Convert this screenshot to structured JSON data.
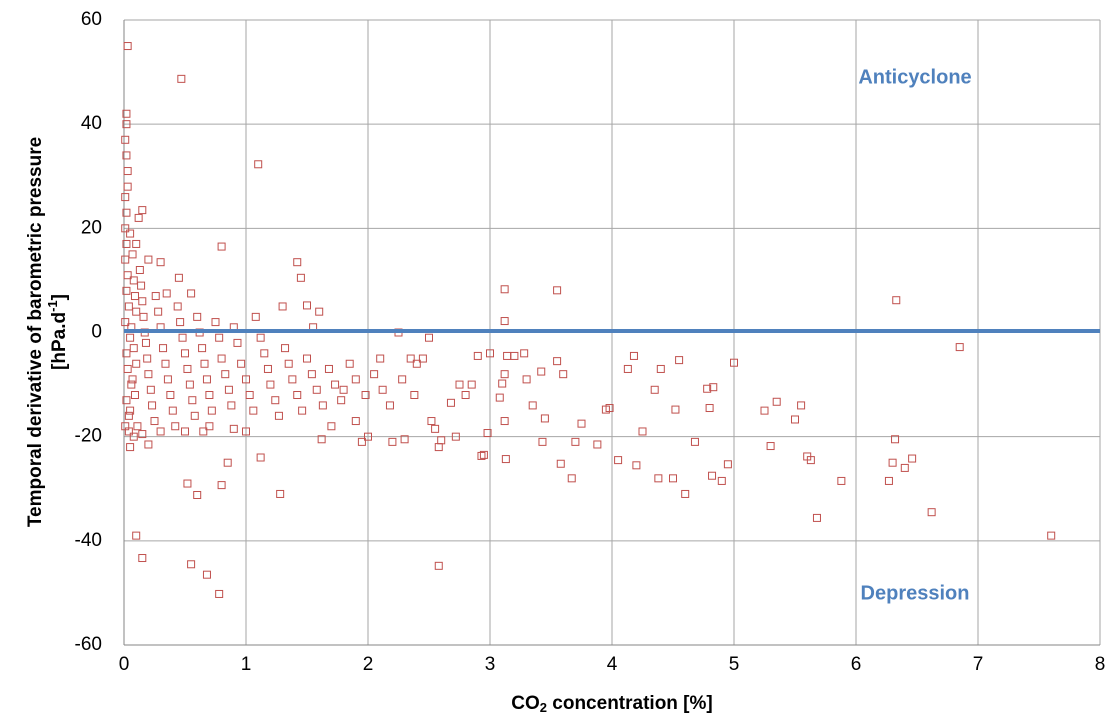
{
  "chart_data": {
    "type": "scatter",
    "xlabel": [
      "CO",
      "2",
      " concentration [%]"
    ],
    "ylabel": [
      "Temporal derivative of barometric pressure",
      "[hPa.d",
      "-1",
      "]"
    ],
    "annotations": [
      "Anticyclone",
      "Depression"
    ],
    "annotation_color": "#4f81bd",
    "reference_line": {
      "y": 0.3,
      "color": "#4f81bd"
    },
    "color": "#c0504d",
    "grid": true,
    "xlim": [
      0,
      8
    ],
    "xticks": [
      0,
      1,
      2,
      3,
      4,
      5,
      6,
      7,
      8
    ],
    "ylim": [
      -60,
      60
    ],
    "yticks": [
      -60,
      -40,
      -20,
      0,
      20,
      40,
      60
    ],
    "x": [
      0.03,
      0.47,
      1.1,
      0.02,
      0.02,
      0.01,
      0.02,
      0.03,
      0.15,
      0.8,
      1.42,
      1.45,
      3.12,
      3.55,
      3.12,
      6.33,
      6.85,
      7.6,
      6.62,
      5.68,
      5.88,
      6.27,
      6.32,
      6.3,
      6.4,
      6.46,
      5.6,
      5.63,
      5.5,
      5.55,
      5.35,
      5.25,
      5.3,
      5.0,
      4.55,
      4.18,
      4.9,
      4.82,
      4.6,
      4.5,
      4.38,
      4.05,
      4.2,
      4.25,
      4.68,
      4.95,
      4.83,
      4.78,
      4.8,
      4.52,
      4.35,
      4.4,
      4.13,
      3.98,
      3.95,
      3.88,
      3.7,
      3.75,
      3.67,
      3.58,
      3.6,
      3.55,
      3.45,
      3.43,
      3.42,
      3.35,
      3.3,
      3.28,
      3.2,
      3.14,
      3.12,
      3.1,
      3.08,
      3.12,
      3.13,
      3.0,
      2.98,
      2.95,
      2.93,
      2.9,
      2.85,
      2.8,
      2.75,
      2.72,
      2.68,
      2.58,
      2.6,
      2.55,
      2.58,
      2.52,
      2.5,
      2.45,
      2.4,
      2.35,
      2.3,
      2.2,
      2.25,
      2.1,
      2.0,
      1.95,
      1.9,
      1.8,
      1.7,
      1.62,
      1.6,
      1.55,
      1.5,
      1.3,
      1.28,
      1.12,
      0.85,
      0.6,
      0.52,
      0.55,
      0.68,
      0.78,
      0.1,
      0.15,
      0.2,
      0.05,
      0.8,
      0.65,
      0.9,
      1.0,
      0.01,
      0.02,
      0.01,
      0.03,
      0.02,
      0.04,
      0.01,
      0.05,
      0.02,
      0.03,
      0.06,
      0.02,
      0.04,
      0.01,
      0.03,
      0.02,
      0.05,
      0.07,
      0.08,
      0.09,
      0.1,
      0.06,
      0.08,
      0.1,
      0.07,
      0.09,
      0.05,
      0.11,
      0.01,
      0.12,
      0.13,
      0.14,
      0.15,
      0.16,
      0.17,
      0.18,
      0.19,
      0.2,
      0.22,
      0.23,
      0.25,
      0.26,
      0.28,
      0.3,
      0.32,
      0.34,
      0.36,
      0.38,
      0.4,
      0.42,
      0.44,
      0.46,
      0.48,
      0.5,
      0.52,
      0.54,
      0.56,
      0.58,
      0.6,
      0.62,
      0.64,
      0.66,
      0.68,
      0.7,
      0.72,
      0.75,
      0.78,
      0.8,
      0.83,
      0.86,
      0.88,
      0.9,
      0.93,
      0.96,
      1.0,
      1.03,
      1.06,
      1.08,
      1.12,
      1.15,
      1.18,
      1.2,
      1.24,
      1.27,
      1.32,
      1.35,
      1.38,
      1.42,
      1.46,
      1.5,
      1.54,
      1.58,
      1.63,
      1.68,
      1.73,
      1.78,
      1.85,
      1.9,
      1.98,
      2.05,
      2.12,
      2.18,
      2.28,
      2.38,
      0.3,
      0.45,
      0.2,
      0.1,
      0.35,
      0.55,
      0.04,
      0.08,
      0.15,
      0.3,
      0.5,
      0.7
    ],
    "values": [
      55,
      48.7,
      32.3,
      42,
      40,
      37,
      34,
      31,
      23.5,
      16.5,
      13.5,
      10.5,
      8.3,
      8.1,
      2.2,
      6.2,
      -2.8,
      -39,
      -34.5,
      -35.6,
      -28.5,
      -28.5,
      -20.5,
      -25,
      -26,
      -24.2,
      -23.8,
      -24.5,
      -16.7,
      -14,
      -13.3,
      -15,
      -21.8,
      -5.8,
      -5.3,
      -4.5,
      -28.5,
      -27.5,
      -31,
      -28,
      -28,
      -24.5,
      -25.5,
      -19,
      -21,
      -25.3,
      -10.5,
      -10.8,
      -14.5,
      -14.8,
      -11,
      -7,
      -7,
      -14.5,
      -14.8,
      -21.5,
      -21,
      -17.5,
      -28,
      -25.2,
      -8,
      -5.5,
      -16.5,
      -21,
      -7.5,
      -14,
      -9,
      -4,
      -4.5,
      -4.5,
      -8,
      -9.8,
      -12.5,
      -17,
      -24.3,
      -4,
      -19.3,
      -23.5,
      -23.7,
      -4.5,
      -10,
      -12,
      -10,
      -20,
      -13.5,
      -44.8,
      -20.7,
      -18.5,
      -22,
      -17,
      -1,
      -5,
      -6,
      -5,
      -20.5,
      -21,
      0,
      -5,
      -20,
      -21,
      -17,
      -11,
      -18,
      -20.5,
      4,
      1,
      5.2,
      5,
      -31,
      -24,
      -25,
      -31.2,
      -29,
      -44.5,
      -46.5,
      -50.2,
      -39,
      -43.3,
      -21.5,
      -22,
      -29.3,
      -19,
      -18.5,
      -19,
      20,
      17,
      14,
      11,
      8,
      5,
      2,
      -1,
      -4,
      -7,
      -10,
      -13,
      -16,
      26,
      28,
      23,
      19,
      15,
      10,
      7,
      4,
      1,
      -3,
      -6,
      -9,
      -12,
      -15,
      -18,
      -18,
      22,
      12,
      9,
      6,
      3,
      0,
      -2,
      -5,
      -8,
      -11,
      -14,
      -17,
      7,
      4,
      1,
      -3,
      -6,
      -9,
      -12,
      -15,
      -18,
      5,
      2,
      -1,
      -4,
      -7,
      -10,
      -13,
      -16,
      3,
      0,
      -3,
      -6,
      -9,
      -12,
      -15,
      2,
      -1,
      -5,
      -8,
      -11,
      -14,
      1,
      -2,
      -6,
      -9,
      -12,
      -15,
      3,
      -1,
      -4,
      -7,
      -10,
      -13,
      -16,
      -3,
      -6,
      -9,
      -12,
      -15,
      -5,
      -8,
      -11,
      -14,
      -7,
      -10,
      -13,
      -6,
      -9,
      -12,
      -8,
      -11,
      -14,
      -9,
      -12,
      13.5,
      10.5,
      14,
      17,
      7.5,
      7.5,
      -19,
      -20,
      -19.5,
      -19,
      -19,
      -18
    ]
  }
}
